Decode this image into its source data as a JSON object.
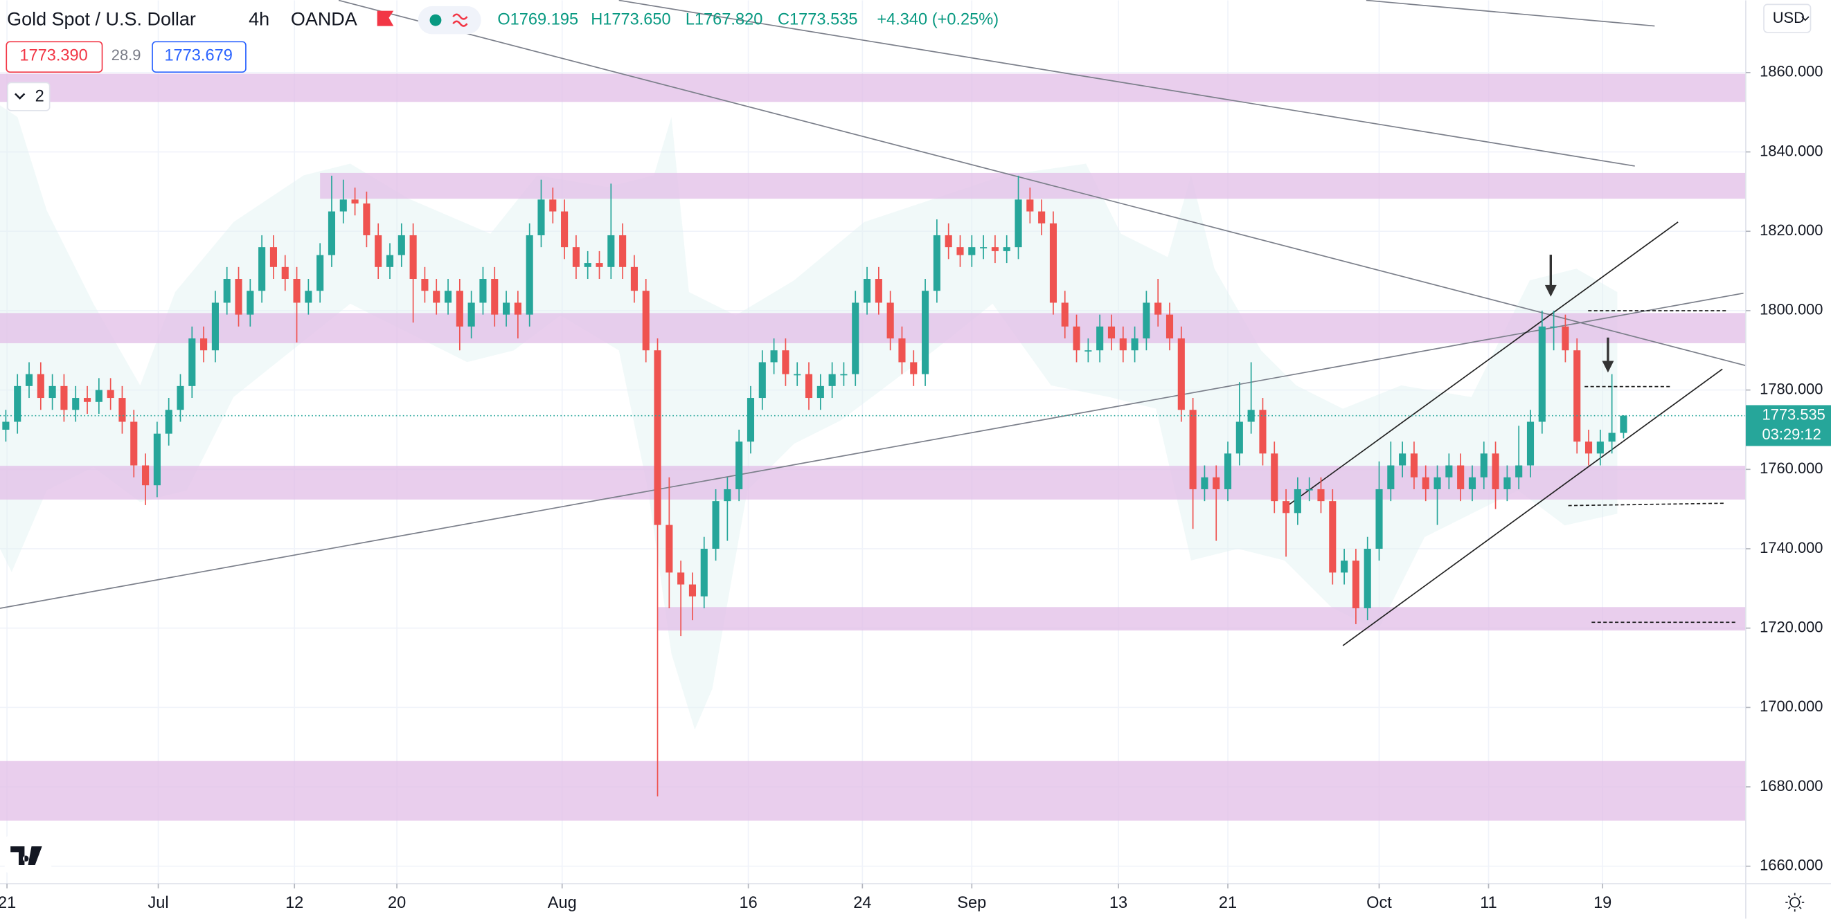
{
  "header": {
    "symbol": "Gold Spot / U.S. Dollar",
    "interval": "4h",
    "source": "OANDA",
    "ohlc": [
      "O1769.195",
      "H1773.650",
      "L1767.820",
      "C1773.535"
    ],
    "change": "+4.340 (+0.25%)",
    "sell": "1773.390",
    "spread": "28.9",
    "buy": "1773.679",
    "indicators": "2",
    "currency": "USD"
  },
  "chart_data": {
    "type": "candlestick",
    "up_color": "#26a69a",
    "down_color": "#ef5350",
    "zone_color": "#e1bee7",
    "grid": true,
    "countdown": "03:29:12",
    "xlim": [
      -0.5,
      149.5
    ],
    "ylim": [
      1655.6,
      1878.2
    ],
    "xticks": [
      {
        "value": 0.1,
        "label": "21"
      },
      {
        "value": 13.1,
        "label": "Jul"
      },
      {
        "value": 24.8,
        "label": "12"
      },
      {
        "value": 33.6,
        "label": "20"
      },
      {
        "value": 47.8,
        "label": "Aug"
      },
      {
        "value": 63.8,
        "label": "16"
      },
      {
        "value": 73.6,
        "label": "24"
      },
      {
        "value": 83.0,
        "label": "Sep"
      },
      {
        "value": 95.6,
        "label": "13"
      },
      {
        "value": 105.0,
        "label": "21"
      },
      {
        "value": 118.0,
        "label": "Oct"
      },
      {
        "value": 127.4,
        "label": "11"
      },
      {
        "value": 137.2,
        "label": "19"
      }
    ],
    "yticks": [
      {
        "value": 1660,
        "label": "1660.000"
      },
      {
        "value": 1680,
        "label": "1680.000"
      },
      {
        "value": 1700,
        "label": "1700.000"
      },
      {
        "value": 1720,
        "label": "1720.000"
      },
      {
        "value": 1740,
        "label": "1740.000"
      },
      {
        "value": 1760,
        "label": "1760.000"
      },
      {
        "value": 1780,
        "label": "1780.000"
      },
      {
        "value": 1800,
        "label": "1800.000"
      },
      {
        "value": 1820,
        "label": "1820.000"
      },
      {
        "value": 1840,
        "label": "1840.000"
      },
      {
        "value": 1860,
        "label": "1860.000"
      }
    ],
    "zones": [
      {
        "start": -0.5,
        "top": 1859.7,
        "bottom": 1852.6
      },
      {
        "start": 27,
        "top": 1834.7,
        "bottom": 1828.2
      },
      {
        "start": -0.5,
        "top": 1799.4,
        "bottom": 1791.8
      },
      {
        "start": -0.5,
        "top": 1760.9,
        "bottom": 1752.4
      },
      {
        "start": 56,
        "top": 1725.3,
        "bottom": 1719.4
      },
      {
        "start": -0.5,
        "top": 1686.5,
        "bottom": 1671.5
      }
    ],
    "open": [
      1770,
      1772,
      1781,
      1784,
      1778,
      1781,
      1775,
      1778,
      1777,
      1780,
      1778,
      1772,
      1761,
      1756,
      1769,
      1775,
      1781,
      1793,
      1790,
      1802,
      1808,
      1799,
      1805,
      1816,
      1811,
      1808,
      1802,
      1805,
      1814,
      1825,
      1828,
      1827,
      1819,
      1811,
      1814,
      1819,
      1808,
      1805,
      1802,
      1805,
      1796,
      1802,
      1808,
      1799,
      1802,
      1799,
      1819,
      1828,
      1825,
      1816,
      1811,
      1812,
      1811,
      1819,
      1811,
      1805,
      1790,
      1746,
      1734,
      1731,
      1728,
      1740,
      1752,
      1755,
      1767,
      1778,
      1787,
      1790,
      1784,
      1784,
      1778,
      1781,
      1784,
      1784,
      1802,
      1808,
      1802,
      1793,
      1787,
      1784,
      1805,
      1819,
      1816,
      1814,
      1816,
      1816,
      1815,
      1816,
      1828,
      1825,
      1822,
      1802,
      1796,
      1790,
      1790,
      1796,
      1793,
      1790,
      1793,
      1802,
      1799,
      1793,
      1775,
      1755,
      1758,
      1755,
      1764,
      1772,
      1775,
      1764,
      1752,
      1749,
      1755,
      1755,
      1752,
      1734,
      1737,
      1725,
      1740,
      1755,
      1761,
      1764,
      1758,
      1755,
      1758,
      1761,
      1755,
      1758,
      1764,
      1755,
      1758,
      1761,
      1772,
      1796,
      1796,
      1790,
      1767,
      1764,
      1767,
      1769.195
    ],
    "high": [
      1775,
      1784,
      1787,
      1787,
      1784,
      1784,
      1781,
      1781,
      1783,
      1783,
      1781,
      1775,
      1764,
      1772,
      1778,
      1784,
      1796,
      1796,
      1805,
      1811,
      1811,
      1808,
      1819,
      1819,
      1814,
      1811,
      1808,
      1817,
      1834,
      1833,
      1831,
      1830,
      1822,
      1817,
      1822,
      1822,
      1811,
      1808,
      1808,
      1808,
      1805,
      1811,
      1811,
      1805,
      1805,
      1822,
      1833,
      1831,
      1828,
      1819,
      1815,
      1815,
      1832,
      1822,
      1814,
      1808,
      1793,
      1758,
      1737,
      1734,
      1743,
      1755,
      1758,
      1770,
      1781,
      1790,
      1793,
      1793,
      1787,
      1787,
      1784,
      1787,
      1787,
      1805,
      1811,
      1811,
      1805,
      1796,
      1790,
      1808,
      1823,
      1822,
      1819,
      1819,
      1819,
      1819,
      1819,
      1834,
      1831,
      1828,
      1825,
      1805,
      1799,
      1793,
      1799,
      1799,
      1796,
      1796,
      1805,
      1808,
      1802,
      1796,
      1778,
      1761,
      1761,
      1767,
      1782,
      1787,
      1778,
      1767,
      1755,
      1758,
      1758,
      1758,
      1755,
      1740,
      1740,
      1743,
      1762,
      1767,
      1767,
      1767,
      1761,
      1761,
      1764,
      1764,
      1761,
      1767,
      1767,
      1761,
      1771,
      1775,
      1800,
      1800,
      1799,
      1793,
      1770,
      1770,
      1784,
      1773.65
    ],
    "low": [
      1767,
      1769,
      1778,
      1775,
      1775,
      1772,
      1772,
      1774,
      1774,
      1775,
      1769,
      1758,
      1751,
      1753,
      1766,
      1772,
      1778,
      1787,
      1787,
      1799,
      1796,
      1796,
      1802,
      1808,
      1805,
      1792,
      1799,
      1802,
      1811,
      1822,
      1824,
      1816,
      1808,
      1808,
      1811,
      1797,
      1802,
      1799,
      1799,
      1790,
      1793,
      1799,
      1796,
      1796,
      1793,
      1796,
      1816,
      1822,
      1813,
      1808,
      1808,
      1808,
      1808,
      1808,
      1802,
      1787,
      1677.6,
      1725,
      1718,
      1722,
      1725,
      1737,
      1742,
      1752,
      1764,
      1775,
      1784,
      1781,
      1781,
      1775,
      1775,
      1778,
      1781,
      1781,
      1799,
      1799,
      1790,
      1784,
      1781,
      1781,
      1802,
      1813,
      1811,
      1811,
      1813,
      1812,
      1812,
      1813,
      1822,
      1819,
      1799,
      1793,
      1787,
      1787,
      1787,
      1790,
      1787,
      1787,
      1790,
      1796,
      1790,
      1772,
      1745,
      1752,
      1742,
      1752,
      1761,
      1769,
      1761,
      1749,
      1738,
      1746,
      1752,
      1749,
      1731,
      1731,
      1721,
      1722,
      1737,
      1752,
      1758,
      1755,
      1752,
      1746,
      1755,
      1752,
      1752,
      1755,
      1750,
      1752,
      1755,
      1758,
      1769,
      1790,
      1787,
      1764,
      1761,
      1761,
      1764,
      1767.82
    ],
    "close": [
      1772,
      1781,
      1784,
      1778,
      1781,
      1775,
      1778,
      1777,
      1780,
      1778,
      1772,
      1761,
      1756,
      1769,
      1775,
      1781,
      1793,
      1790,
      1802,
      1808,
      1799,
      1805,
      1816,
      1811,
      1808,
      1802,
      1805,
      1814,
      1825,
      1828,
      1827,
      1819,
      1811,
      1814,
      1819,
      1808,
      1805,
      1802,
      1805,
      1796,
      1802,
      1808,
      1799,
      1802,
      1799,
      1819,
      1828,
      1825,
      1816,
      1811,
      1812,
      1811,
      1819,
      1811,
      1805,
      1790,
      1746,
      1734,
      1731,
      1728,
      1740,
      1752,
      1755,
      1767,
      1778,
      1787,
      1790,
      1784,
      1784,
      1778,
      1781,
      1784,
      1784,
      1802,
      1808,
      1802,
      1793,
      1787,
      1784,
      1805,
      1819,
      1816,
      1814,
      1816,
      1816,
      1815,
      1816,
      1828,
      1825,
      1822,
      1802,
      1796,
      1790,
      1790,
      1796,
      1793,
      1790,
      1793,
      1802,
      1799,
      1793,
      1775,
      1755,
      1758,
      1755,
      1764,
      1772,
      1775,
      1764,
      1752,
      1749,
      1755,
      1755,
      1752,
      1734,
      1737,
      1725,
      1740,
      1755,
      1761,
      1764,
      1758,
      1755,
      1758,
      1761,
      1755,
      1758,
      1764,
      1755,
      1758,
      1761,
      1772,
      1796,
      1796,
      1790,
      1767,
      1764,
      1767,
      1769.2,
      1773.535
    ]
  }
}
